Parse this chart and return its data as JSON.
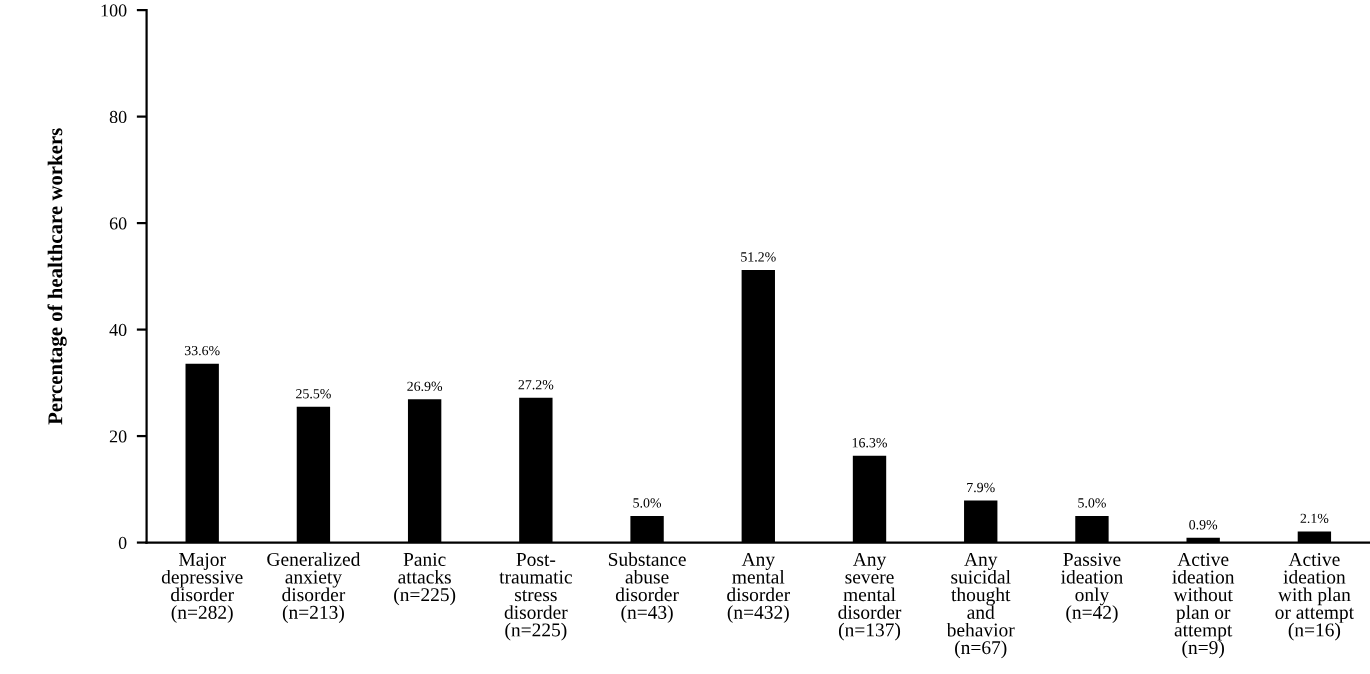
{
  "chart_data": {
    "type": "bar",
    "ylabel": "Percentage of healthcare workers",
    "categories": [
      "Major\ndepressive\ndisorder\n(n=282)",
      "Generalized\nanxiety\ndisorder\n(n=213)",
      "Panic\nattacks\n(n=225)",
      "Post-\ntraumatic\nstress\ndisorder\n(n=225)",
      "Substance\nabuse\ndisorder\n(n=43)",
      "Any\nmental\ndisorder\n(n=432)",
      "Any\nsevere\nmental\ndisorder\n(n=137)",
      "Any\nsuicidal\nthought\nand\nbehavior\n(n=67)",
      "Passive\nideation\nonly\n(n=42)",
      "Active\nideation\nwithout\nplan or\nattempt\n(n=9)",
      "Active\nideation\nwith plan\nor attempt\n(n=16)"
    ],
    "values": [
      33.6,
      25.5,
      26.9,
      27.2,
      5.0,
      51.2,
      16.3,
      7.9,
      5.0,
      0.9,
      2.1
    ],
    "value_labels": [
      "33.6%",
      "25.5%",
      "26.9%",
      "27.2%",
      "5.0%",
      "51.2%",
      "16.3%",
      "7.9%",
      "5.0%",
      "0.9%",
      "2.1%"
    ],
    "color": "#000000",
    "ylim": [
      0,
      100
    ],
    "yticks": [
      0,
      20,
      40,
      60,
      80,
      100
    ],
    "grid": false,
    "legend": false
  }
}
